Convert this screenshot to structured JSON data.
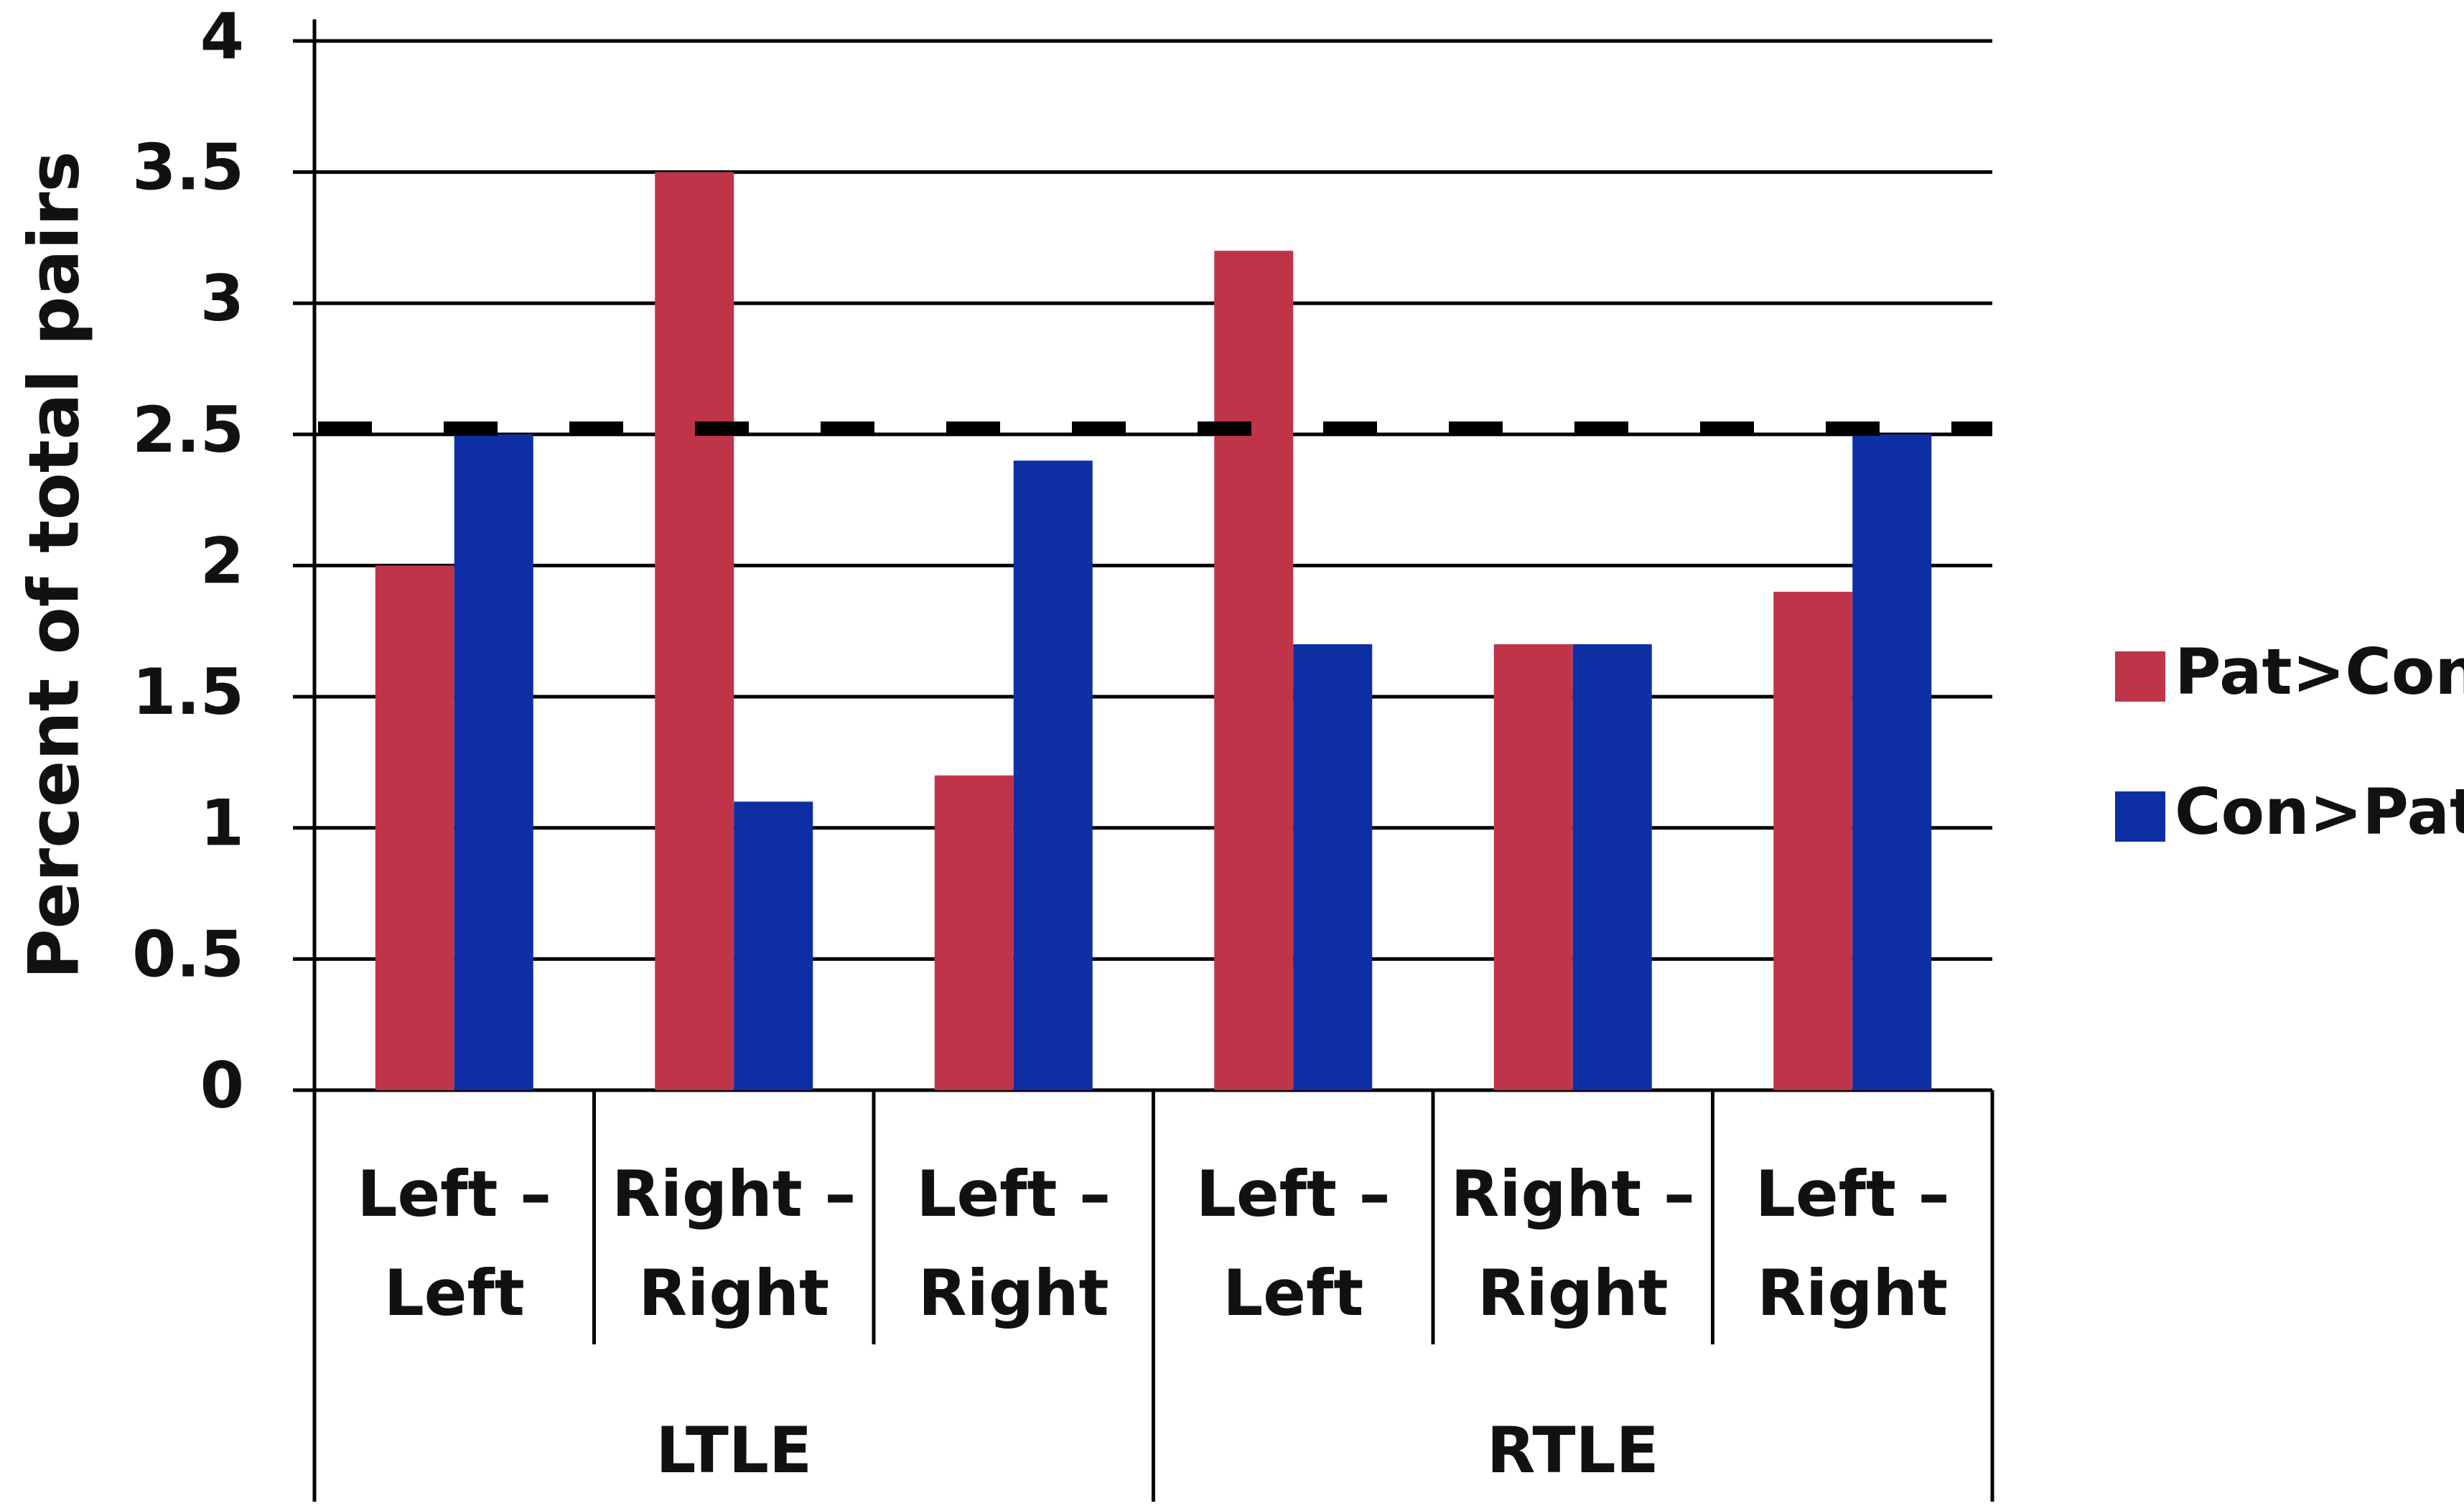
{
  "chart_data": {
    "type": "bar",
    "y_label": "Percent of total pairs",
    "categories": [
      [
        "Left –",
        "Left"
      ],
      [
        "Right –",
        "Right"
      ],
      [
        "Left –",
        "Right"
      ],
      [
        "Left –",
        "Left"
      ],
      [
        "Right –",
        "Right"
      ],
      [
        "Left –",
        "Right"
      ]
    ],
    "groups": [
      "LTLE",
      "RTLE"
    ],
    "series": [
      {
        "name": "Pat>Con",
        "color": "#c0344a",
        "values": [
          2.0,
          3.5,
          1.2,
          3.2,
          1.7,
          1.9
        ]
      },
      {
        "name": "Con>Pat",
        "color": "#0d2fa3",
        "values": [
          2.5,
          1.1,
          2.4,
          1.7,
          1.7,
          2.5
        ]
      }
    ],
    "reference_line": 2.5,
    "ylim": [
      0,
      4
    ],
    "yticks": [
      0,
      0.5,
      1,
      1.5,
      2,
      2.5,
      3,
      3.5,
      4
    ],
    "grid": true,
    "legend": "right"
  }
}
